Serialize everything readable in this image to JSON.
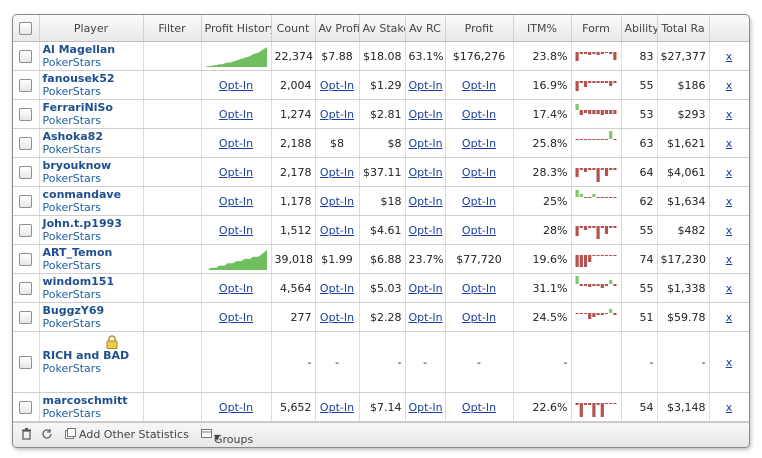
{
  "header": {
    "columns": [
      "",
      "Player",
      "Filter",
      "Profit History",
      "Count",
      "Av Profit",
      "Av Stake",
      "Av RC",
      "Profit",
      "ITM%",
      "Form",
      "Ability",
      "Total Ra",
      ""
    ]
  },
  "rows": [
    {
      "name": "Al Magellan",
      "site": "PokerStars",
      "history": "chart",
      "count": "22,374",
      "av_profit": "$7.88",
      "av_stake": "$18.08",
      "av_rc": "63.1%",
      "profit": "$176,276",
      "itm": "23.8%",
      "ability": "83",
      "total": "$27,377",
      "remove": "x",
      "locked": false,
      "history_values": [
        0,
        1,
        1,
        2,
        2,
        3,
        3,
        4,
        5,
        5,
        6,
        7,
        8,
        9,
        10,
        11,
        12,
        14,
        15,
        16,
        18,
        20,
        22
      ],
      "form": [
        -9,
        -2,
        -2,
        -3,
        -2,
        -3,
        -2,
        -1,
        -2,
        -8
      ]
    },
    {
      "name": "fanousek52",
      "site": "PokerStars",
      "history": "Opt-In",
      "count": "2,004",
      "av_profit": "Opt-In",
      "av_stake": "$1.29",
      "av_rc": "Opt-In",
      "profit": "Opt-In",
      "itm": "16.9%",
      "ability": "55",
      "total": "$186",
      "remove": "x",
      "locked": false,
      "form": [
        -10,
        -2,
        -6,
        -2,
        -2,
        -2,
        -2,
        -2,
        -5,
        -2
      ]
    },
    {
      "name": "FerrariNiSo",
      "site": "PokerStars",
      "history": "Opt-In",
      "count": "1,274",
      "av_profit": "Opt-In",
      "av_stake": "$2.81",
      "av_rc": "Opt-In",
      "profit": "Opt-In",
      "itm": "17.4%",
      "ability": "53",
      "total": "$293",
      "remove": "x",
      "locked": false,
      "form": [
        6,
        -5,
        -3,
        -4,
        -4,
        -4,
        -5,
        -4,
        -4,
        -4
      ]
    },
    {
      "name": "Ashoka82",
      "site": "PokerStars",
      "history": "Opt-In",
      "count": "2,188",
      "av_profit": "$8",
      "av_stake": "$8",
      "av_rc": "Opt-In",
      "profit": "Opt-In",
      "itm": "25.8%",
      "ability": "63",
      "total": "$1,621",
      "remove": "x",
      "locked": false,
      "form": [
        -1,
        -1,
        -1,
        -1,
        -1,
        -1,
        -1,
        -1,
        10,
        -1
      ]
    },
    {
      "name": "bryouknow",
      "site": "PokerStars",
      "history": "Opt-In",
      "count": "2,178",
      "av_profit": "Opt-In",
      "av_stake": "$37.11",
      "av_rc": "Opt-In",
      "profit": "Opt-In",
      "itm": "28.3%",
      "ability": "64",
      "total": "$4,061",
      "remove": "x",
      "locked": false,
      "form": [
        -9,
        -2,
        -4,
        -2,
        -2,
        -14,
        -2,
        -8,
        -2,
        -2
      ]
    },
    {
      "name": "conmandave",
      "site": "PokerStars",
      "history": "Opt-In",
      "count": "1,178",
      "av_profit": "Opt-In",
      "av_stake": "$18",
      "av_rc": "Opt-In",
      "profit": "Opt-In",
      "itm": "25%",
      "ability": "62",
      "total": "$1,634",
      "remove": "x",
      "locked": false,
      "form": [
        7,
        3,
        -1,
        -1,
        3,
        -1,
        -1,
        -1,
        -1,
        -1
      ]
    },
    {
      "name": "John.t.p1993",
      "site": "PokerStars",
      "history": "Opt-In",
      "count": "1,512",
      "av_profit": "Opt-In",
      "av_stake": "$4.61",
      "av_rc": "Opt-In",
      "profit": "Opt-In",
      "itm": "28%",
      "ability": "55",
      "total": "$482",
      "remove": "x",
      "locked": false,
      "form": [
        -10,
        -2,
        -4,
        -2,
        -2,
        -13,
        -2,
        -8,
        -2,
        -2
      ]
    },
    {
      "name": "ART_Temon",
      "site": "PokerStars",
      "history": "chart",
      "count": "39,018",
      "av_profit": "$1.99",
      "av_stake": "$6.88",
      "av_rc": "23.7%",
      "profit": "$77,720",
      "itm": "19.6%",
      "ability": "74",
      "total": "$17,230",
      "remove": "x",
      "locked": false,
      "history_values": [
        0,
        0,
        1,
        1,
        1,
        2,
        2,
        2,
        3,
        3,
        3,
        4,
        4,
        4,
        5,
        5,
        5,
        6,
        6,
        6,
        7,
        8,
        9
      ],
      "form": [
        -12,
        -12,
        -12,
        -7,
        -1,
        -1,
        -1,
        -1,
        -1,
        -1
      ]
    },
    {
      "name": "windom151",
      "site": "PokerStars",
      "history": "Opt-In",
      "count": "4,564",
      "av_profit": "Opt-In",
      "av_stake": "$5.03",
      "av_rc": "Opt-In",
      "profit": "Opt-In",
      "itm": "31.1%",
      "ability": "55",
      "total": "$1,338",
      "remove": "x",
      "locked": false,
      "form": [
        9,
        -2,
        -2,
        -3,
        -2,
        -2,
        -4,
        -2,
        4,
        -2
      ]
    },
    {
      "name": "BuggzY69",
      "site": "PokerStars",
      "history": "Opt-In",
      "count": "277",
      "av_profit": "Opt-In",
      "av_stake": "$2.28",
      "av_rc": "Opt-In",
      "profit": "Opt-In",
      "itm": "24.5%",
      "ability": "51",
      "total": "$59.78",
      "remove": "x",
      "locked": false,
      "form": [
        -1,
        -1,
        -1,
        -6,
        -4,
        -2,
        -2,
        -1,
        4,
        -2
      ]
    },
    {
      "name": "RICH and BAD",
      "site": "PokerStars",
      "history": "",
      "count": "-",
      "av_profit": "-",
      "av_stake": "-",
      "av_rc": "-",
      "profit": "-",
      "itm": "-",
      "ability": "-",
      "total": "-",
      "remove": "x",
      "locked": true,
      "form": []
    },
    {
      "name": "marcoschmitt",
      "site": "PokerStars",
      "history": "Opt-In",
      "count": "5,652",
      "av_profit": "Opt-In",
      "av_stake": "$7.14",
      "av_rc": "Opt-In",
      "profit": "Opt-In",
      "itm": "22.6%",
      "ability": "54",
      "total": "$3,148",
      "remove": "x",
      "locked": false,
      "form": [
        -2,
        -14,
        -2,
        -2,
        -14,
        -2,
        -14,
        -1,
        -1,
        -1
      ]
    }
  ],
  "footer": {
    "add_stats": "Add Other Statistics",
    "groups": "Groups"
  },
  "colors": {
    "positive": "#7cc86a",
    "negative": "#b5524f",
    "history_fill": "#6fbf5e"
  },
  "icons": {
    "trash": "trash-icon",
    "refresh": "refresh-icon",
    "add": "add-stats-icon",
    "groups": "groups-icon",
    "lock": "lock-icon"
  }
}
